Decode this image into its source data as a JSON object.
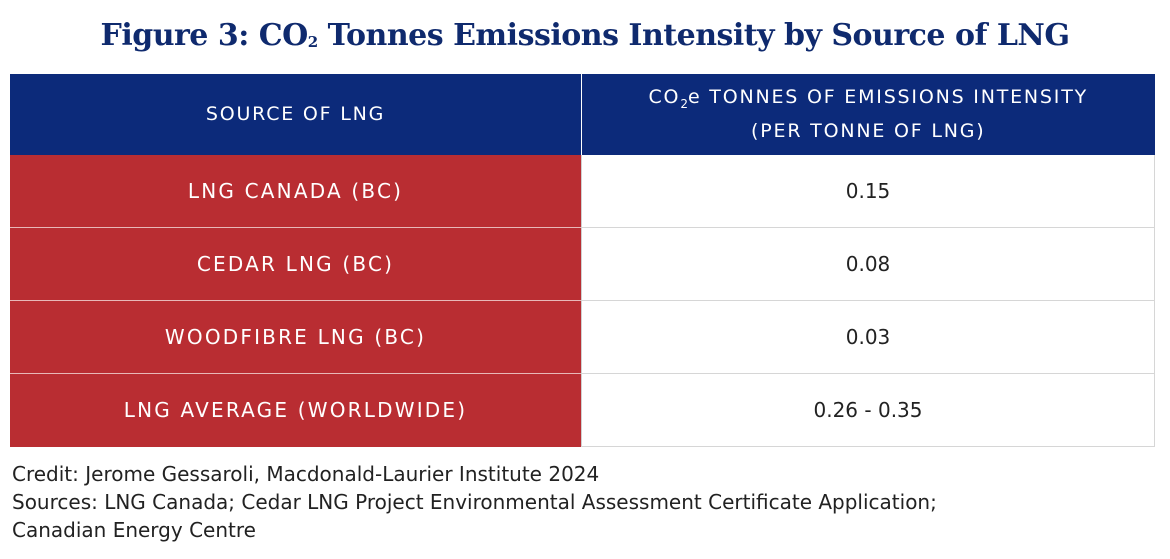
{
  "title": {
    "pre": "Figure 3: CO",
    "sub": "2",
    "post": " Tonnes Emissions Intensity by Source of LNG"
  },
  "header": {
    "col1": "SOURCE OF LNG",
    "col2_pre": "CO",
    "col2_sub": "2",
    "col2_post": "e TONNES OF EMISSIONS INTENSITY",
    "col2_line2": "(PER TONNE OF LNG)"
  },
  "chart_data": {
    "type": "table",
    "columns": [
      "SOURCE OF LNG",
      "CO2e TONNES OF EMISSIONS INTENSITY (PER TONNE OF LNG)"
    ],
    "rows": [
      {
        "source": "LNG CANADA (BC)",
        "value": "0.15"
      },
      {
        "source": "CEDAR LNG (BC)",
        "value": "0.08"
      },
      {
        "source": "WOODFIBRE LNG (BC)",
        "value": "0.03"
      },
      {
        "source": "LNG AVERAGE (WORLDWIDE)",
        "value": "0.26 - 0.35"
      }
    ]
  },
  "notes": {
    "credit": "Credit: Jerome Gessaroli, Macdonald-Laurier Institute 2024",
    "sources_line1": "Sources: LNG Canada; Cedar LNG Project Environmental Assessment Certificate Application;",
    "sources_line2": "Canadian Energy Centre"
  },
  "colors": {
    "title": "#0f2a6e",
    "header_bg": "#0c2a7a",
    "source_cell_bg": "#b92d32",
    "value_cell_bg": "#ffffff"
  }
}
